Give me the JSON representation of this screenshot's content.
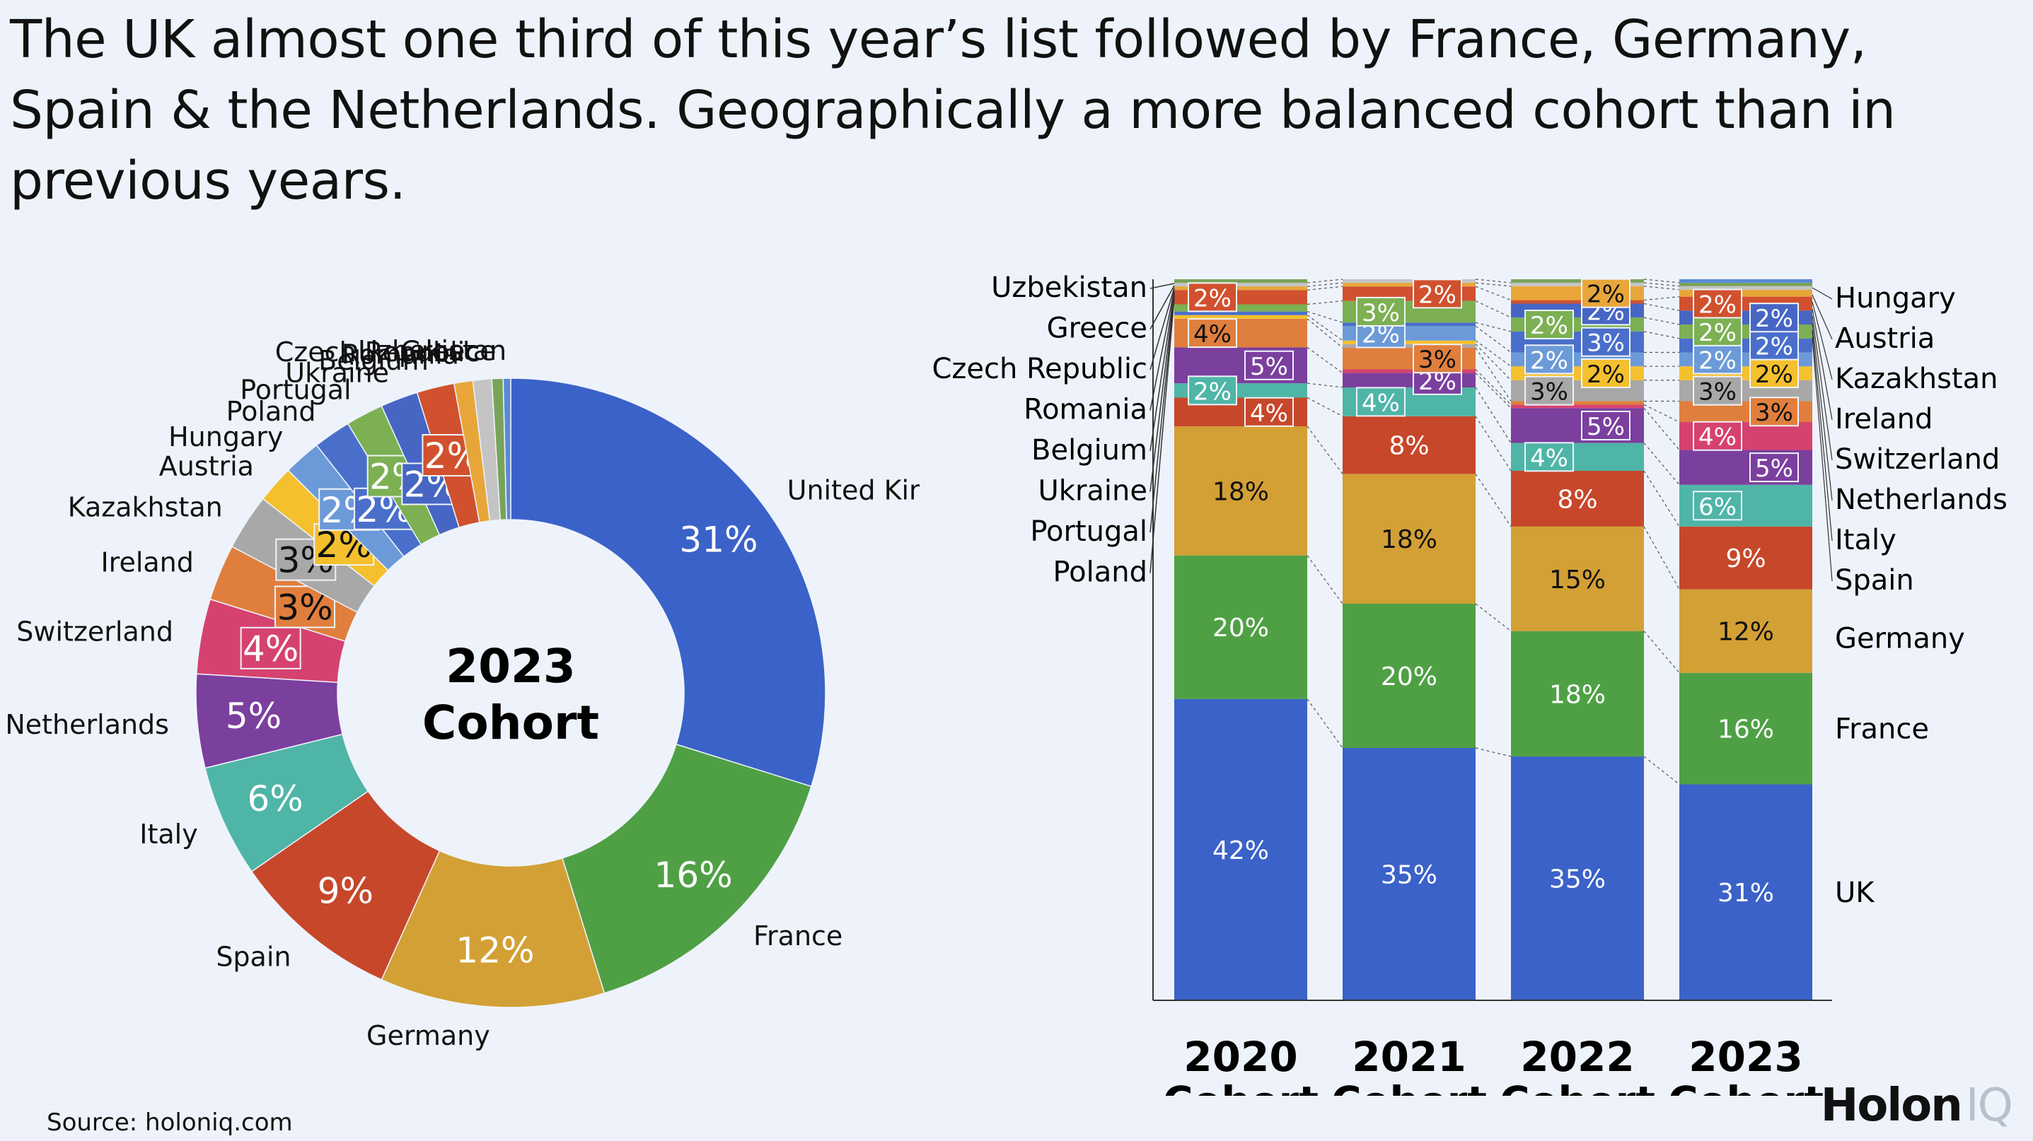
{
  "title": "The UK almost one third of this year’s list followed by France, Germany, Spain & the Netherlands. Geographically a more balanced cohort than in previous years.",
  "source": "Source: holoniq.com",
  "logo": {
    "main": "Holon",
    "suffix": "IQ"
  },
  "colors": {
    "uk": "#3b62c8",
    "france": "#4fa045",
    "germany": "#d3a035",
    "spain": "#c7472a",
    "italy": "#4fb5a7",
    "netherlands": "#7b3f9e",
    "switzerland": "#d6426f",
    "ireland": "#e07f3d",
    "kazakhstan": "#a8a8a8",
    "austria": "#f5c02d",
    "hungary": "#6c9ad8",
    "poland": "#4a6fcb",
    "portugal": "#7cb052",
    "ukraine": "#4766c4",
    "belgium": "#d1512e",
    "romania": "#e8a63a",
    "czech": "#c4c4c4",
    "greece": "#7aa35a",
    "uzbekistan": "#5a8ad6"
  },
  "chart_data": [
    {
      "type": "pie",
      "center_label": [
        "2023",
        "Cohort"
      ],
      "categories": [
        "United Kingdom",
        "France",
        "Germany",
        "Spain",
        "Italy",
        "Netherlands",
        "Switzerland",
        "Ireland",
        "Kazakhstan",
        "Austria",
        "Hungary",
        "Poland",
        "Portugal",
        "Ukraine",
        "Belgium",
        "Romania",
        "Czech Republic",
        "Greece",
        "Uzbekistan"
      ],
      "values": [
        31,
        16,
        12,
        9,
        6,
        5,
        4,
        3,
        3,
        2,
        2,
        2,
        2,
        2,
        2,
        1,
        1,
        0.6,
        0.4
      ],
      "value_labels": [
        "31%",
        "16%",
        "12%",
        "9%",
        "6%",
        "5%",
        "4%",
        "3%",
        "3%",
        "2%",
        "2%",
        "2%",
        "2%",
        "2%",
        "2%",
        "",
        "",
        "",
        ""
      ],
      "color_keys": [
        "uk",
        "france",
        "germany",
        "spain",
        "italy",
        "netherlands",
        "switzerland",
        "ireland",
        "kazakhstan",
        "austria",
        "hungary",
        "poland",
        "portugal",
        "ukraine",
        "belgium",
        "romania",
        "czech",
        "greece",
        "uzbekistan"
      ]
    },
    {
      "type": "bar",
      "stacked": true,
      "categories": [
        "2020 Cohort",
        "2021 Cohort",
        "2022 Cohort",
        "2023 Cohort"
      ],
      "x_labels": [
        [
          "2020",
          "Cohort"
        ],
        [
          "2021",
          "Cohort"
        ],
        [
          "2022",
          "Cohort"
        ],
        [
          "2023",
          "Cohort"
        ]
      ],
      "ylim": [
        0,
        100
      ],
      "series": [
        {
          "name": "UK",
          "color_key": "uk",
          "values": [
            42,
            35,
            35,
            31
          ],
          "labels": [
            "42%",
            "35%",
            "35%",
            "31%"
          ]
        },
        {
          "name": "France",
          "color_key": "france",
          "values": [
            20,
            20,
            18,
            16
          ],
          "labels": [
            "20%",
            "20%",
            "18%",
            "16%"
          ]
        },
        {
          "name": "Germany",
          "color_key": "germany",
          "values": [
            18,
            18,
            15,
            12
          ],
          "labels": [
            "18%",
            "18%",
            "15%",
            "12%"
          ]
        },
        {
          "name": "Spain",
          "color_key": "spain",
          "values": [
            4,
            8,
            8,
            9
          ],
          "labels": [
            "4%",
            "8%",
            "8%",
            "9%"
          ]
        },
        {
          "name": "Italy",
          "color_key": "italy",
          "values": [
            2,
            4,
            4,
            6
          ],
          "labels": [
            "2%",
            "4%",
            "4%",
            "6%"
          ]
        },
        {
          "name": "Netherlands",
          "color_key": "netherlands",
          "values": [
            5,
            2,
            5,
            5
          ],
          "labels": [
            "5%",
            "2%",
            "5%",
            "5%"
          ]
        },
        {
          "name": "Switzerland",
          "color_key": "switzerland",
          "values": [
            0,
            0.5,
            0.5,
            4
          ],
          "labels": [
            "",
            "",
            "",
            "4%"
          ]
        },
        {
          "name": "Ireland",
          "color_key": "ireland",
          "values": [
            4,
            3,
            0.5,
            3
          ],
          "labels": [
            "4%",
            "3%",
            "",
            "3%"
          ]
        },
        {
          "name": "Kazakhstan",
          "color_key": "kazakhstan",
          "values": [
            0,
            0.5,
            3,
            3
          ],
          "labels": [
            "",
            "",
            "3%",
            "3%"
          ]
        },
        {
          "name": "Austria",
          "color_key": "austria",
          "values": [
            0.5,
            0.5,
            2,
            2
          ],
          "labels": [
            "",
            "",
            "2%",
            "2%"
          ]
        },
        {
          "name": "Hungary",
          "color_key": "hungary",
          "values": [
            0,
            2,
            2,
            2
          ],
          "labels": [
            "",
            "2%",
            "2%",
            "2%"
          ]
        },
        {
          "name": "Poland",
          "color_key": "poland",
          "values": [
            0.5,
            0.5,
            3,
            2
          ],
          "labels": [
            "",
            "",
            "3%",
            "2%"
          ]
        },
        {
          "name": "Portugal",
          "color_key": "portugal",
          "values": [
            1,
            3,
            2,
            2
          ],
          "labels": [
            "",
            "3%",
            "2%",
            "2%"
          ]
        },
        {
          "name": "Ukraine",
          "color_key": "ukraine",
          "values": [
            0,
            0,
            2,
            2
          ],
          "labels": [
            "",
            "",
            "2%",
            "2%"
          ]
        },
        {
          "name": "Belgium",
          "color_key": "belgium",
          "values": [
            2,
            2,
            0.5,
            2
          ],
          "labels": [
            "2%",
            "2%",
            "",
            "2%"
          ]
        },
        {
          "name": "Romania",
          "color_key": "romania",
          "values": [
            0.5,
            0.5,
            2,
            1
          ],
          "labels": [
            "",
            "",
            "2%",
            ""
          ]
        },
        {
          "name": "Czech Republic",
          "color_key": "czech",
          "values": [
            0.5,
            0.5,
            0.5,
            0.5
          ],
          "labels": [
            "",
            "",
            "",
            ""
          ]
        },
        {
          "name": "Greece",
          "color_key": "greece",
          "values": [
            0.5,
            0,
            0.5,
            0.5
          ],
          "labels": [
            "",
            "",
            "",
            ""
          ]
        },
        {
          "name": "Uzbekistan",
          "color_key": "uzbekistan",
          "values": [
            0,
            0,
            0,
            0.5
          ],
          "labels": [
            "",
            "",
            "",
            ""
          ]
        }
      ],
      "left_legend": [
        "Uzbekistan",
        "Greece",
        "Czech Republic",
        "Romania",
        "Belgium",
        "Ukraine",
        "Portugal",
        "Poland"
      ],
      "right_legend": [
        "Hungary",
        "Austria",
        "Kazakhstan",
        "Ireland",
        "Switzerland",
        "Netherlands",
        "Italy",
        "Spain",
        "Germany",
        "France",
        "UK"
      ]
    }
  ]
}
